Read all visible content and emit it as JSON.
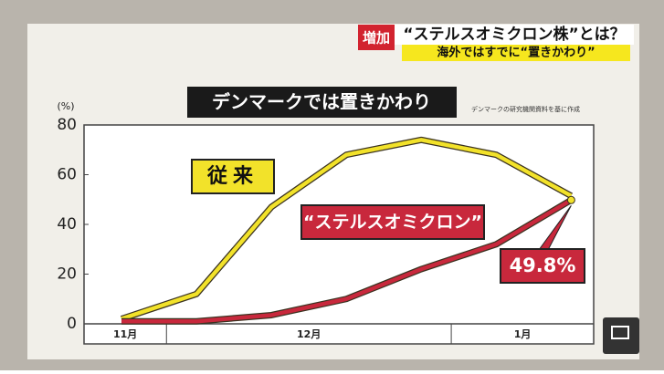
{
  "header": {
    "badge": "増加",
    "headline": "“ステルスオミクロン株”とは？",
    "subline": "海外ではすでに“置きかわり”"
  },
  "chart_data": {
    "type": "line",
    "title": "デンマークでは置きかわり",
    "source": "デンマークの研究機関資料を基に作成",
    "y_label": "(%)",
    "x": [
      0,
      1,
      2,
      3,
      4,
      5,
      6
    ],
    "xlim": [
      -0.5,
      6.3
    ],
    "x_groups": [
      {
        "label": "11月",
        "from": -0.5,
        "to": 0.6
      },
      {
        "label": "12月",
        "from": 0.6,
        "to": 4.4
      },
      {
        "label": "1月",
        "from": 4.4,
        "to": 6.3
      }
    ],
    "ylim": [
      0,
      80
    ],
    "yticks": [
      0,
      20,
      40,
      60,
      80
    ],
    "grid": false,
    "series": [
      {
        "name": "従来",
        "color": "#f2e22a",
        "values": [
          2,
          12,
          47,
          68,
          74,
          68,
          51.5
        ]
      },
      {
        "name": "“ステルスオミクロン”",
        "color": "#c8283c",
        "values": [
          1,
          1,
          3.5,
          10,
          22,
          32,
          49.8
        ],
        "value_labels": [
          null,
          null,
          null,
          null,
          null,
          null,
          "49.8%"
        ]
      }
    ]
  }
}
